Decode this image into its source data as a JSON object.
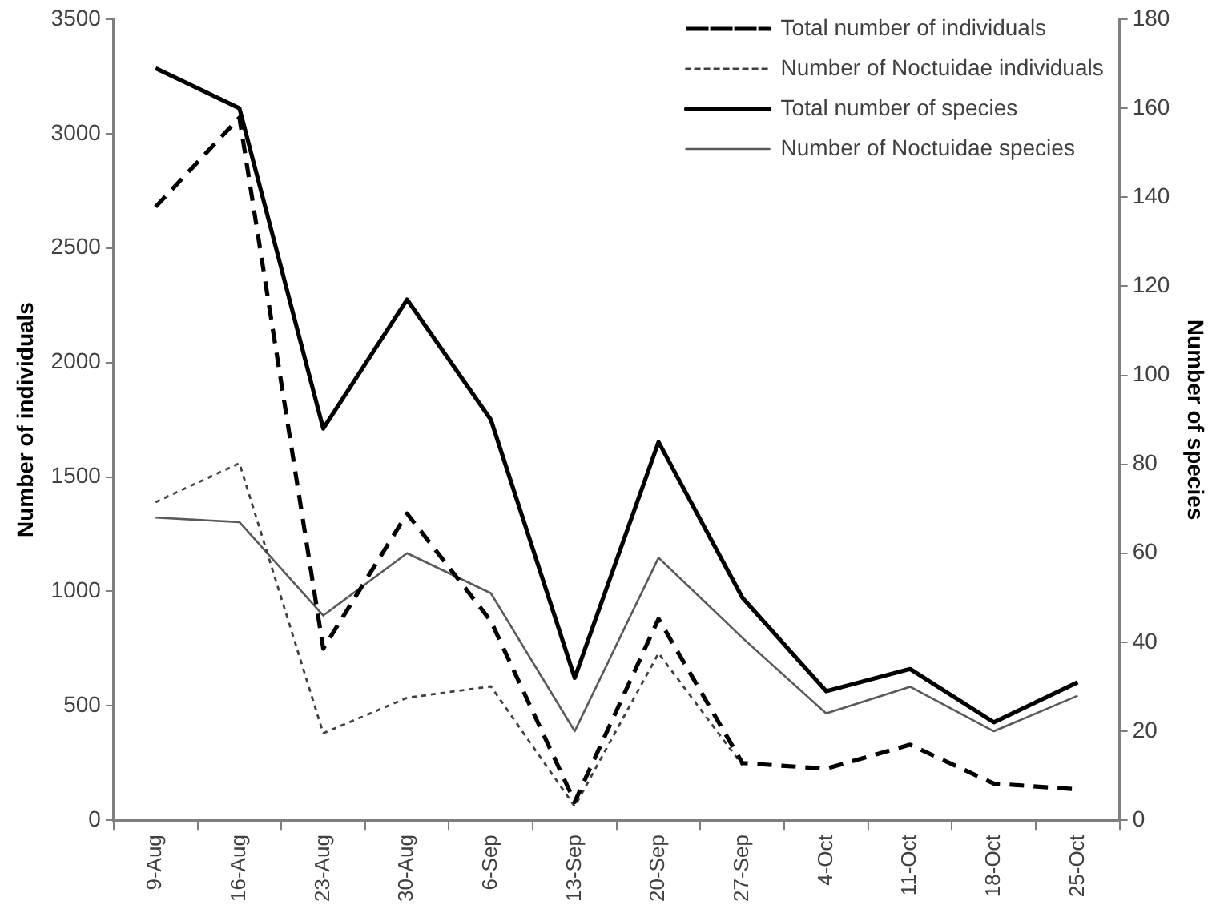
{
  "chart_data": {
    "type": "line",
    "categories": [
      "9-Aug",
      "16-Aug",
      "23-Aug",
      "30-Aug",
      "6-Sep",
      "13-Sep",
      "20-Sep",
      "27-Sep",
      "4-Oct",
      "11-Oct",
      "18-Oct",
      "25-Oct"
    ],
    "ylabel": "Number of individuals",
    "y2label": "Number of species",
    "ylim": [
      0,
      3500
    ],
    "yticks": [
      0,
      500,
      1000,
      1500,
      2000,
      2500,
      3000,
      3500
    ],
    "y2lim": [
      0,
      180
    ],
    "y2ticks": [
      0,
      20,
      40,
      60,
      80,
      100,
      120,
      140,
      160,
      180
    ],
    "grid": false,
    "legend": "top right",
    "marker": "none",
    "series": [
      {
        "name": "Total number of individuals",
        "color": "#000000",
        "line_style": "dashed",
        "values": [
          2680,
          3070,
          750,
          1340,
          870,
          80,
          880,
          250,
          225,
          330,
          160,
          135
        ]
      },
      {
        "name": "Number of Noctuidae individuals",
        "color": "#404040",
        "line_style": "dotted",
        "values": [
          1390,
          1560,
          380,
          535,
          585,
          60,
          730,
          240,
          null,
          null,
          null,
          null
        ]
      },
      {
        "name": "Total number of species",
        "color": "#000000",
        "line_style": "solid",
        "axis": "y2",
        "values": [
          169,
          160,
          88,
          117,
          90,
          32,
          85,
          50,
          29,
          34,
          22,
          31
        ]
      },
      {
        "name": "Number of Noctuidae species",
        "color": "#595959",
        "line_style": "solid",
        "axis": "y2",
        "values": [
          68,
          67,
          46,
          60,
          51,
          20,
          59,
          41,
          24,
          30,
          20,
          28
        ]
      }
    ]
  }
}
